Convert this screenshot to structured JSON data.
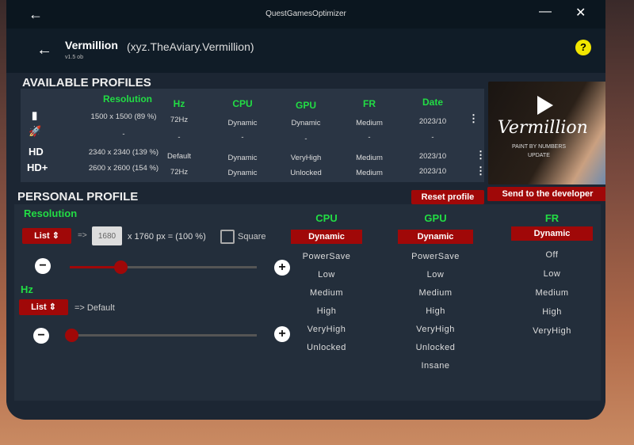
{
  "window": {
    "title": "QuestGamesOptimizer"
  },
  "header": {
    "title": "Vermillion",
    "package": "(xyz.TheAviary.Vermillion)",
    "version": "v1.5 ob"
  },
  "available": {
    "title": "AVAILABLE PROFILES",
    "columns": [
      "Resolution",
      "Hz",
      "CPU",
      "GPU",
      "FR",
      "Date"
    ],
    "rows": [
      {
        "icon": "battery-icon",
        "label": "",
        "cells": [
          "1500 x 1500 (89 %)",
          "72Hz",
          "Dynamic",
          "Dynamic",
          "Medium",
          "2023/10"
        ],
        "menu": true
      },
      {
        "icon": "rocket-icon",
        "label": "",
        "cells": [
          "-",
          "-",
          "-",
          "-",
          "-",
          "-"
        ],
        "menu": false
      },
      {
        "icon": "",
        "label": "HD",
        "cells": [
          "2340 x 2340 (139 %)",
          "Default",
          "Dynamic",
          "VeryHigh",
          "Medium",
          "2023/10"
        ],
        "menu": true
      },
      {
        "icon": "",
        "label": "HD+",
        "cells": [
          "2600 x 2600 (154 %)",
          "72Hz",
          "Dynamic",
          "Unlocked",
          "Medium",
          "2023/10"
        ],
        "menu": true
      }
    ]
  },
  "thumbnail": {
    "title": "Vermillion",
    "subtitle": "PAINT BY NUMBERS",
    "subtitle2": "UPDATE"
  },
  "buttons": {
    "reset": "Reset profile",
    "send": "Send to the developer"
  },
  "personal": {
    "title": "PERSONAL PROFILE",
    "resolution": {
      "label": "Resolution",
      "mode": "List",
      "arrow": "=>",
      "width": "1680",
      "rest": "x 1760 px = (100 %)",
      "square": "Square",
      "square_checked": false,
      "slider": 0.27
    },
    "hz": {
      "label": "Hz",
      "mode": "List",
      "value": "=> Default",
      "slider": 0.0
    },
    "cpu": {
      "label": "CPU",
      "selected": "Dynamic",
      "options": [
        "PowerSave",
        "Low",
        "Medium",
        "High",
        "VeryHigh",
        "Unlocked"
      ]
    },
    "gpu": {
      "label": "GPU",
      "selected": "Dynamic",
      "options": [
        "PowerSave",
        "Low",
        "Medium",
        "High",
        "VeryHigh",
        "Unlocked",
        "Insane"
      ]
    },
    "fr": {
      "label": "FR",
      "selected": "Dynamic",
      "options": [
        "Off",
        "Low",
        "Medium",
        "High",
        "VeryHigh"
      ]
    }
  },
  "colors": {
    "accent": "#a00808",
    "green": "#22dd44",
    "panel": "#1c2633"
  }
}
